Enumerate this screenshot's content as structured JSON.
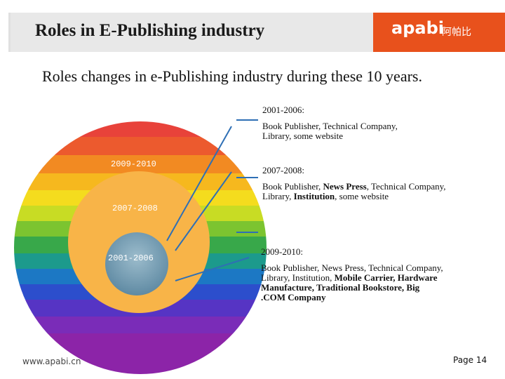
{
  "header": {
    "title": "Roles in E-Publishing industry",
    "logo_latin": "apabi",
    "logo_cn": "阿帕比"
  },
  "subtitle": "Roles changes in e-Publishing industry during these 10 years.",
  "rings": [
    {
      "label": "2009-2010",
      "color": "rainbow"
    },
    {
      "label": "2007-2008",
      "color": "#f8b448"
    },
    {
      "label": "2001-2006",
      "color": "#7ea3b8"
    }
  ],
  "descriptions": [
    {
      "heading": "2001-2006:",
      "parts": [
        {
          "t": "Book Publisher, Technical Company, Library, some website",
          "b": false
        }
      ]
    },
    {
      "heading": "2007-2008:",
      "parts": [
        {
          "t": "Book Publisher, ",
          "b": false
        },
        {
          "t": "News Press",
          "b": true
        },
        {
          "t": ", Technical Company, Library, ",
          "b": false
        },
        {
          "t": "Institution",
          "b": true
        },
        {
          "t": ", some website",
          "b": false
        }
      ]
    },
    {
      "heading": "2009-2010:",
      "parts": [
        {
          "t": "Book Publisher, News Press, Technical Company, Library, Institution, ",
          "b": false
        },
        {
          "t": "Mobile Carrier, Hardware Manufacture, Traditional Bookstore, Big .COM Company",
          "b": true
        }
      ]
    }
  ],
  "footer": {
    "url": "www.apabi.cn",
    "page_label": "Page",
    "page_number": "14"
  },
  "colors": {
    "logo_bg": "#e8511c",
    "header_bg": "#e8e8e8",
    "pointer_line": "#2e6fb5"
  }
}
